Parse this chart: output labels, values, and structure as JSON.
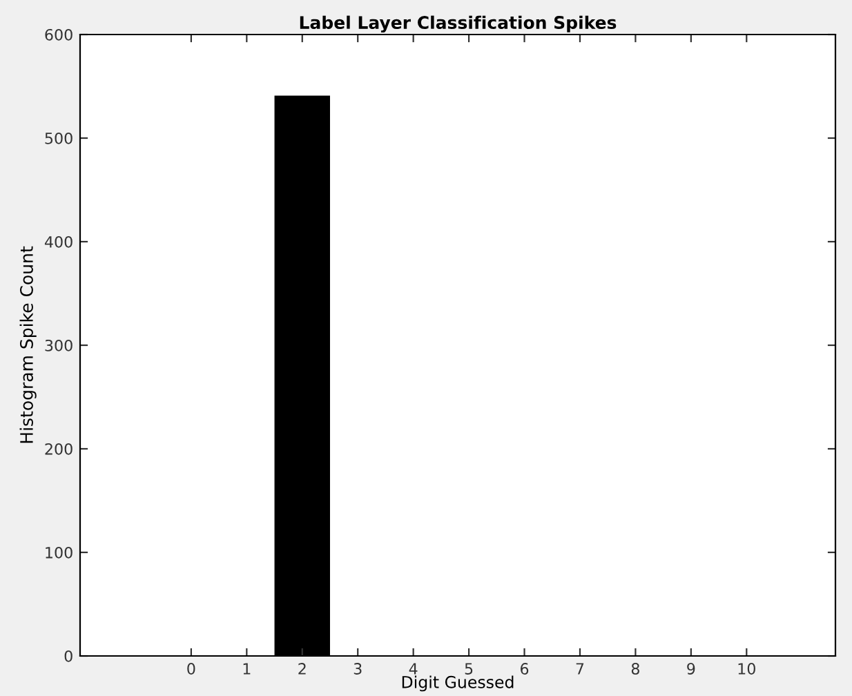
{
  "chart_data": {
    "type": "histogram",
    "title": "Label Layer Classification Spikes",
    "xlabel": "Digit Guessed",
    "ylabel": "Histogram Spike Count",
    "bins": [
      -0.5,
      0.5,
      1.5,
      2.5,
      3.5,
      4.5,
      5.5,
      6.5,
      7.5,
      8.5,
      9.5,
      10.5
    ],
    "values": [
      0,
      0,
      541,
      0,
      0,
      0,
      0,
      0,
      0,
      0,
      0
    ],
    "color": "#000000",
    "xlim": [
      -2,
      11.6
    ],
    "xticks": [
      0,
      1,
      2,
      3,
      4,
      5,
      6,
      7,
      8,
      9,
      10
    ],
    "ylim": [
      0,
      600
    ],
    "yticks": [
      0,
      100,
      200,
      300,
      400,
      500,
      600
    ],
    "grid": false
  }
}
